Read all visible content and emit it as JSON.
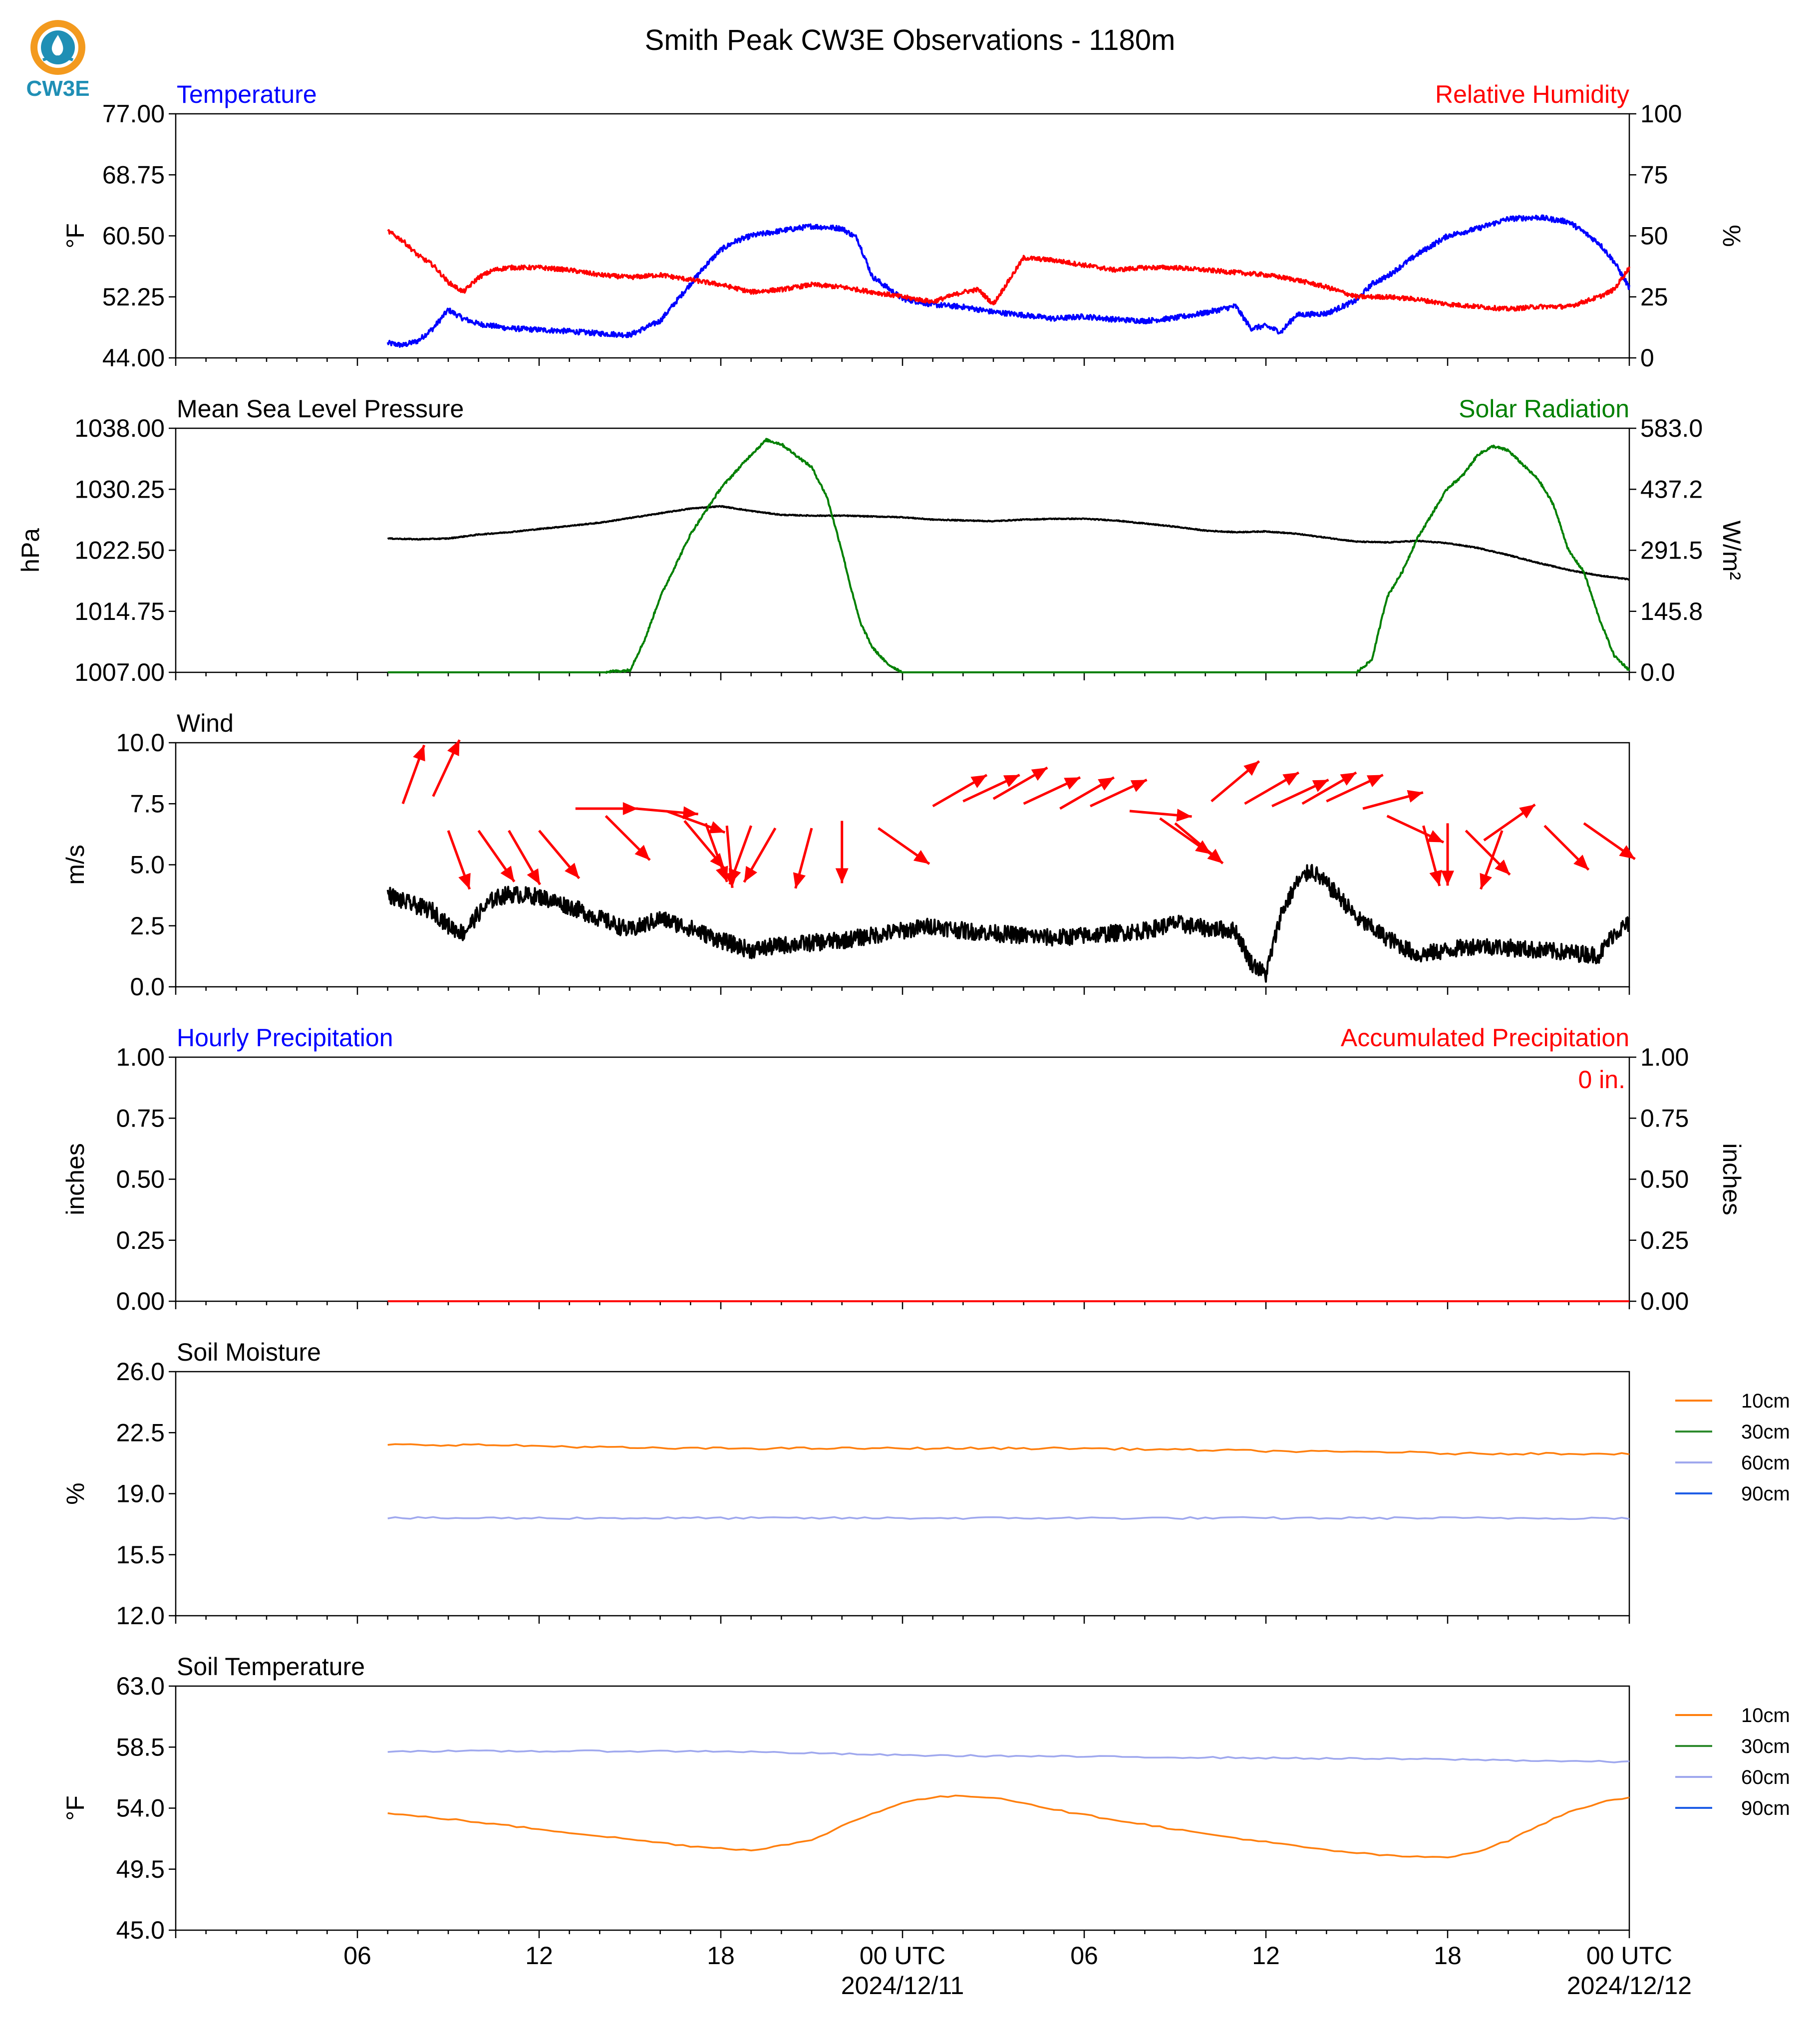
{
  "title": "Smith Peak CW3E Observations - 1180m",
  "logo_text": "CW3E",
  "colors": {
    "temperature": "#0000ff",
    "humidity": "#ff0000",
    "pressure": "#000000",
    "solar": "#008000",
    "wind_speed": "#000000",
    "wind_arrow": "#ff0000",
    "hourly_precip": "#0000ff",
    "accum_precip": "#ff0000",
    "soil_10cm": "#ff7f0e",
    "soil_30cm": "#2e8b2e",
    "soil_60cm": "#9fa8ee",
    "soil_90cm": "#1f5ee6",
    "logo_orange": "#f39a1e",
    "logo_blue": "#1f8fb5"
  },
  "x_axis": {
    "unit": "hours since 2024-12-10 00 UTC",
    "range": [
      0,
      48
    ],
    "data_start": 7,
    "data_end": 48,
    "major_tick_labels": [
      {
        "hour": 6,
        "label": "06",
        "sub": ""
      },
      {
        "hour": 12,
        "label": "12",
        "sub": ""
      },
      {
        "hour": 18,
        "label": "18",
        "sub": ""
      },
      {
        "hour": 24,
        "label": "00 UTC",
        "sub": "2024/12/11"
      },
      {
        "hour": 30,
        "label": "06",
        "sub": ""
      },
      {
        "hour": 36,
        "label": "12",
        "sub": ""
      },
      {
        "hour": 42,
        "label": "18",
        "sub": ""
      },
      {
        "hour": 48,
        "label": "00 UTC",
        "sub": "2024/12/12"
      }
    ]
  },
  "chart_data": [
    {
      "type": "line",
      "panel": "temperature_humidity",
      "title_left": "Temperature",
      "title_right": "Relative Humidity",
      "ylabel": "°F",
      "ylabel_right": "%",
      "ylim": [
        44.0,
        77.0
      ],
      "ylim_right": [
        0,
        100
      ],
      "yticks": [
        "44.00",
        "52.25",
        "60.50",
        "68.75",
        "77.00"
      ],
      "yticks_right": [
        "0",
        "25",
        "50",
        "75",
        "100"
      ],
      "series": [
        {
          "name": "Temperature",
          "axis": "left",
          "x": [
            7,
            7.5,
            8,
            8.5,
            9,
            9.5,
            10,
            10.5,
            11,
            12,
            13,
            14,
            15,
            16,
            16.5,
            17,
            17.5,
            18,
            18.5,
            19,
            20,
            21,
            22,
            22.5,
            23,
            24,
            25,
            26,
            27,
            28,
            29,
            30,
            31,
            32,
            33,
            34,
            35,
            35.5,
            36,
            36.5,
            37,
            38,
            39,
            39.5,
            40,
            41,
            42,
            43,
            44,
            45,
            46,
            46.5,
            47,
            47.5,
            48
          ],
          "values": [
            46.0,
            45.7,
            46.3,
            48.0,
            50.5,
            49.3,
            48.6,
            48.3,
            48.0,
            47.8,
            47.6,
            47.3,
            47.1,
            49.0,
            51.5,
            54.0,
            56.5,
            58.6,
            59.8,
            60.5,
            61.2,
            61.8,
            61.5,
            60.2,
            55.0,
            52.0,
            51.2,
            50.9,
            50.2,
            49.8,
            49.3,
            49.6,
            49.2,
            49.0,
            49.4,
            50.1,
            51.0,
            48.0,
            48.3,
            47.5,
            49.8,
            50.0,
            51.8,
            54.0,
            55.0,
            58.0,
            60.5,
            61.5,
            62.8,
            63.0,
            62.4,
            61.0,
            59.5,
            57.0,
            53.5
          ]
        },
        {
          "name": "Relative Humidity",
          "axis": "right",
          "x": [
            7,
            7.5,
            8,
            8.5,
            9,
            9.5,
            10,
            10.5,
            11,
            12,
            13,
            14,
            15,
            16,
            17,
            18,
            19,
            20,
            21,
            22,
            23,
            24,
            25,
            26,
            26.5,
            27,
            28,
            29,
            30,
            31,
            32,
            33,
            34,
            35,
            36,
            37,
            38,
            39,
            40,
            41,
            42,
            43,
            44,
            45,
            46,
            47,
            47.5,
            48
          ],
          "values": [
            52,
            48,
            42,
            38,
            31,
            27,
            33,
            36,
            37,
            37,
            36,
            34,
            33,
            34,
            32,
            30,
            27,
            28,
            30,
            29,
            27,
            25,
            23,
            27,
            28,
            22,
            41,
            40,
            38,
            36,
            37,
            37,
            36,
            35,
            34,
            32,
            29,
            25,
            25,
            24,
            22,
            21,
            20,
            21,
            21,
            25,
            28,
            37
          ]
        }
      ]
    },
    {
      "type": "line",
      "panel": "pressure_solar",
      "title_left": "Mean Sea Level Pressure",
      "title_right": "Solar Radiation",
      "ylabel": "hPa",
      "ylabel_right": "W/m²",
      "ylim": [
        1007.0,
        1038.0
      ],
      "ylim_right": [
        0.0,
        583.0
      ],
      "yticks": [
        "1007.00",
        "1014.75",
        "1022.50",
        "1030.25",
        "1038.00"
      ],
      "yticks_right": [
        "0.0",
        "145.8",
        "291.5",
        "437.2",
        "583.0"
      ],
      "series": [
        {
          "name": "Mean Sea Level Pressure",
          "axis": "left",
          "x": [
            7,
            8,
            9,
            10,
            11,
            12,
            13,
            14,
            15,
            16,
            17,
            18,
            19,
            20,
            21,
            22,
            23,
            24,
            25,
            26,
            27,
            28,
            29,
            30,
            31,
            32,
            33,
            34,
            35,
            36,
            37,
            38,
            39,
            40,
            41,
            42,
            43,
            44,
            45,
            46,
            47,
            48
          ],
          "values": [
            1024.0,
            1023.9,
            1024.0,
            1024.5,
            1024.8,
            1025.2,
            1025.6,
            1026.0,
            1026.6,
            1027.2,
            1027.8,
            1028.1,
            1027.5,
            1027.0,
            1026.9,
            1026.9,
            1026.8,
            1026.7,
            1026.4,
            1026.3,
            1026.2,
            1026.4,
            1026.5,
            1026.5,
            1026.3,
            1025.9,
            1025.5,
            1025.0,
            1024.8,
            1024.9,
            1024.6,
            1024.1,
            1023.6,
            1023.5,
            1023.7,
            1023.4,
            1022.8,
            1021.9,
            1020.9,
            1020.0,
            1019.3,
            1018.8
          ]
        },
        {
          "name": "Solar Radiation",
          "axis": "right",
          "x": [
            7,
            10,
            14,
            15,
            15.5,
            16,
            17,
            18,
            19,
            19.5,
            20,
            21,
            21.5,
            22,
            22.3,
            22.6,
            23,
            23.5,
            24,
            25,
            28,
            31,
            34,
            37,
            38,
            39,
            39.5,
            40,
            40.5,
            41,
            41.5,
            42,
            42.5,
            43,
            43.5,
            44,
            45,
            45.5,
            46,
            46.5,
            47,
            47.5,
            48
          ],
          "values": [
            0,
            0,
            0,
            5,
            80,
            180,
            330,
            440,
            520,
            555,
            545,
            490,
            420,
            290,
            200,
            120,
            60,
            20,
            0,
            0,
            0,
            0,
            0,
            0,
            0,
            0,
            30,
            180,
            240,
            320,
            380,
            440,
            470,
            520,
            540,
            530,
            460,
            400,
            290,
            240,
            130,
            40,
            5
          ]
        }
      ]
    },
    {
      "type": "line",
      "panel": "wind",
      "title_left": "Wind",
      "ylabel": "m/s",
      "ylim": [
        0.0,
        10.0
      ],
      "yticks": [
        "0.0",
        "2.5",
        "5.0",
        "7.5",
        "10.0"
      ],
      "series": [
        {
          "name": "Wind Speed",
          "axis": "left",
          "x": [
            7,
            7.5,
            8,
            8.5,
            9,
            9.5,
            10,
            10.5,
            11,
            12,
            13,
            14,
            15,
            16,
            17,
            18,
            19,
            20,
            21,
            22,
            23,
            24,
            25,
            26,
            27,
            28,
            29,
            30,
            31,
            32,
            33,
            34,
            35,
            35.5,
            36,
            36.5,
            37,
            37.5,
            38,
            38.5,
            39,
            39.5,
            40,
            41,
            42,
            43,
            44,
            45,
            46,
            47,
            47.5,
            48
          ],
          "values": [
            3.8,
            3.5,
            3.3,
            3.1,
            2.5,
            2.2,
            3.0,
            3.6,
            3.8,
            3.7,
            3.3,
            2.8,
            2.3,
            2.8,
            2.4,
            1.9,
            1.5,
            1.7,
            1.8,
            1.9,
            2.1,
            2.3,
            2.5,
            2.3,
            2.2,
            2.1,
            2.0,
            2.1,
            2.2,
            2.3,
            2.6,
            2.4,
            2.3,
            1.0,
            0.5,
            3.0,
            4.2,
            4.8,
            4.2,
            3.6,
            2.8,
            2.4,
            2.0,
            1.3,
            1.5,
            1.7,
            1.6,
            1.5,
            1.4,
            1.3,
            2.2,
            2.6
          ]
        }
      ],
      "wind_arrows": [
        {
          "x": 7.5,
          "y": 7.5,
          "dir": 20
        },
        {
          "x": 8.5,
          "y": 7.8,
          "dir": 25
        },
        {
          "x": 9,
          "y": 6.4,
          "dir": 160
        },
        {
          "x": 10,
          "y": 6.4,
          "dir": 145
        },
        {
          "x": 11,
          "y": 6.4,
          "dir": 150
        },
        {
          "x": 12,
          "y": 6.4,
          "dir": 140
        },
        {
          "x": 13.2,
          "y": 7.3,
          "dir": 90
        },
        {
          "x": 14.2,
          "y": 7.0,
          "dir": 135
        },
        {
          "x": 15.2,
          "y": 7.3,
          "dir": 95
        },
        {
          "x": 16.2,
          "y": 7.2,
          "dir": 110
        },
        {
          "x": 16.8,
          "y": 6.8,
          "dir": 140
        },
        {
          "x": 17.5,
          "y": 6.7,
          "dir": 160
        },
        {
          "x": 18.2,
          "y": 6.6,
          "dir": 175
        },
        {
          "x": 19.0,
          "y": 6.6,
          "dir": 200
        },
        {
          "x": 19.8,
          "y": 6.5,
          "dir": 210
        },
        {
          "x": 21.0,
          "y": 6.5,
          "dir": 195
        },
        {
          "x": 22.0,
          "y": 6.8,
          "dir": 180
        },
        {
          "x": 23.2,
          "y": 6.5,
          "dir": 125
        },
        {
          "x": 25.0,
          "y": 7.4,
          "dir": 60
        },
        {
          "x": 26.0,
          "y": 7.6,
          "dir": 65
        },
        {
          "x": 27.0,
          "y": 7.7,
          "dir": 60
        },
        {
          "x": 28.0,
          "y": 7.5,
          "dir": 65
        },
        {
          "x": 29.2,
          "y": 7.3,
          "dir": 60
        },
        {
          "x": 30.2,
          "y": 7.4,
          "dir": 65
        },
        {
          "x": 31.5,
          "y": 7.2,
          "dir": 95
        },
        {
          "x": 32.5,
          "y": 6.9,
          "dir": 125
        },
        {
          "x": 33.0,
          "y": 6.7,
          "dir": 130
        },
        {
          "x": 34.2,
          "y": 7.6,
          "dir": 50
        },
        {
          "x": 35.3,
          "y": 7.5,
          "dir": 60
        },
        {
          "x": 36.2,
          "y": 7.4,
          "dir": 65
        },
        {
          "x": 37.2,
          "y": 7.5,
          "dir": 60
        },
        {
          "x": 38.0,
          "y": 7.6,
          "dir": 65
        },
        {
          "x": 39.2,
          "y": 7.3,
          "dir": 75
        },
        {
          "x": 40.0,
          "y": 7.0,
          "dir": 115
        },
        {
          "x": 41.2,
          "y": 6.6,
          "dir": 165
        },
        {
          "x": 42.0,
          "y": 6.7,
          "dir": 180
        },
        {
          "x": 42.6,
          "y": 6.4,
          "dir": 135
        },
        {
          "x": 43.2,
          "y": 6.0,
          "dir": 55
        },
        {
          "x": 43.8,
          "y": 6.4,
          "dir": 200
        },
        {
          "x": 45.2,
          "y": 6.6,
          "dir": 135
        },
        {
          "x": 46.5,
          "y": 6.7,
          "dir": 125
        }
      ]
    },
    {
      "type": "line",
      "panel": "precipitation",
      "title_left": "Hourly Precipitation",
      "title_right": "Accumulated Precipitation",
      "ylabel": "inches",
      "ylabel_right": "inches",
      "ylim": [
        0.0,
        1.0
      ],
      "ylim_right": [
        0.0,
        1.0
      ],
      "yticks": [
        "0.00",
        "0.25",
        "0.50",
        "0.75",
        "1.00"
      ],
      "yticks_right": [
        "0.00",
        "0.25",
        "0.50",
        "0.75",
        "1.00"
      ],
      "annotation": "0 in.",
      "series": [
        {
          "name": "Hourly Precipitation",
          "axis": "left",
          "x": [
            7,
            48
          ],
          "values": [
            0,
            0
          ]
        },
        {
          "name": "Accumulated Precipitation",
          "axis": "right",
          "x": [
            7,
            48
          ],
          "values": [
            0,
            0
          ]
        }
      ]
    },
    {
      "type": "line",
      "panel": "soil_moisture",
      "title_left": "Soil Moisture",
      "ylabel": "%",
      "ylim": [
        12.0,
        26.0
      ],
      "yticks": [
        "12.0",
        "15.5",
        "19.0",
        "22.5",
        "26.0"
      ],
      "legend": [
        "10cm",
        "30cm",
        "60cm",
        "90cm"
      ],
      "series": [
        {
          "name": "10cm",
          "axis": "left",
          "x": [
            7,
            10,
            16,
            20,
            24,
            26,
            30,
            34,
            38,
            40,
            42,
            44,
            46,
            48
          ],
          "values": [
            21.8,
            21.8,
            21.6,
            21.6,
            21.6,
            21.6,
            21.6,
            21.5,
            21.4,
            21.4,
            21.3,
            21.3,
            21.3,
            21.3
          ]
        },
        {
          "name": "60cm",
          "axis": "left",
          "x": [
            7,
            12,
            18,
            24,
            30,
            36,
            42,
            48
          ],
          "values": [
            17.6,
            17.6,
            17.6,
            17.6,
            17.6,
            17.6,
            17.6,
            17.6
          ]
        }
      ]
    },
    {
      "type": "line",
      "panel": "soil_temperature",
      "title_left": "Soil Temperature",
      "ylabel": "°F",
      "ylim": [
        45.0,
        63.0
      ],
      "yticks": [
        "45.0",
        "49.5",
        "54.0",
        "58.5",
        "63.0"
      ],
      "legend": [
        "10cm",
        "30cm",
        "60cm",
        "90cm"
      ],
      "series": [
        {
          "name": "10cm",
          "axis": "left",
          "x": [
            7,
            9,
            11,
            13,
            15,
            17,
            19,
            21,
            22,
            23,
            24,
            25,
            26,
            27,
            28,
            29,
            30,
            32,
            34,
            36,
            38,
            40,
            41,
            42,
            43,
            44,
            45,
            46,
            47,
            48
          ],
          "values": [
            53.6,
            53.2,
            52.7,
            52.2,
            51.7,
            51.2,
            50.9,
            51.6,
            52.7,
            53.6,
            54.4,
            54.8,
            54.9,
            54.8,
            54.4,
            53.9,
            53.5,
            52.8,
            52.1,
            51.5,
            50.9,
            50.5,
            50.4,
            50.4,
            50.8,
            51.6,
            52.7,
            53.7,
            54.4,
            54.8
          ]
        },
        {
          "name": "60cm",
          "axis": "left",
          "x": [
            7,
            12,
            18,
            20,
            24,
            30,
            36,
            42,
            48
          ],
          "values": [
            58.2,
            58.2,
            58.2,
            58.1,
            57.9,
            57.8,
            57.7,
            57.6,
            57.4
          ]
        }
      ]
    }
  ]
}
